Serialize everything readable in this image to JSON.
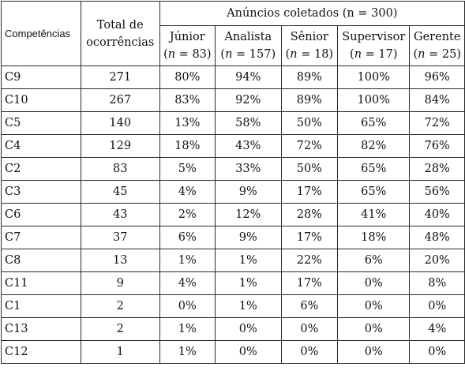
{
  "table": {
    "headers": {
      "competencias": "Competências",
      "total_line1": "Total de",
      "total_line2": "ocorrências",
      "group": "Anúncios coletados (n = 300)",
      "levels": [
        {
          "name": "Júnior",
          "n_label": "n",
          "n_rest": " = 83)"
        },
        {
          "name": "Analista",
          "n_label": "n",
          "n_rest": " = 157)"
        },
        {
          "name": "Sênior",
          "n_label": "n",
          "n_rest": " = 18)"
        },
        {
          "name": "Supervisor",
          "n_label": "n",
          "n_rest": " = 17)"
        },
        {
          "name": "Gerente",
          "n_label": "n",
          "n_rest": " = 25)"
        }
      ]
    },
    "rows": [
      {
        "comp": "C9",
        "total": "271",
        "vals": [
          "80%",
          "94%",
          "89%",
          "100%",
          "96%"
        ]
      },
      {
        "comp": "C10",
        "total": "267",
        "vals": [
          "83%",
          "92%",
          "89%",
          "100%",
          "84%"
        ]
      },
      {
        "comp": "C5",
        "total": "140",
        "vals": [
          "13%",
          "58%",
          "50%",
          "65%",
          "72%"
        ]
      },
      {
        "comp": "C4",
        "total": "129",
        "vals": [
          "18%",
          "43%",
          "72%",
          "82%",
          "76%"
        ]
      },
      {
        "comp": "C2",
        "total": "83",
        "vals": [
          "5%",
          "33%",
          "50%",
          "65%",
          "28%"
        ]
      },
      {
        "comp": "C3",
        "total": "45",
        "vals": [
          "4%",
          "9%",
          "17%",
          "65%",
          "56%"
        ]
      },
      {
        "comp": "C6",
        "total": "43",
        "vals": [
          "2%",
          "12%",
          "28%",
          "41%",
          "40%"
        ]
      },
      {
        "comp": "C7",
        "total": "37",
        "vals": [
          "6%",
          "9%",
          "17%",
          "18%",
          "48%"
        ]
      },
      {
        "comp": "C8",
        "total": "13",
        "vals": [
          "1%",
          "1%",
          "22%",
          "6%",
          "20%"
        ]
      },
      {
        "comp": "C11",
        "total": "9",
        "vals": [
          "4%",
          "1%",
          "17%",
          "0%",
          "8%"
        ]
      },
      {
        "comp": "C1",
        "total": "2",
        "vals": [
          "0%",
          "1%",
          "6%",
          "0%",
          "0%"
        ]
      },
      {
        "comp": "C13",
        "total": "2",
        "vals": [
          "1%",
          "0%",
          "0%",
          "0%",
          "4%"
        ]
      },
      {
        "comp": "C12",
        "total": "1",
        "vals": [
          "1%",
          "0%",
          "0%",
          "0%",
          "0%"
        ]
      }
    ]
  }
}
